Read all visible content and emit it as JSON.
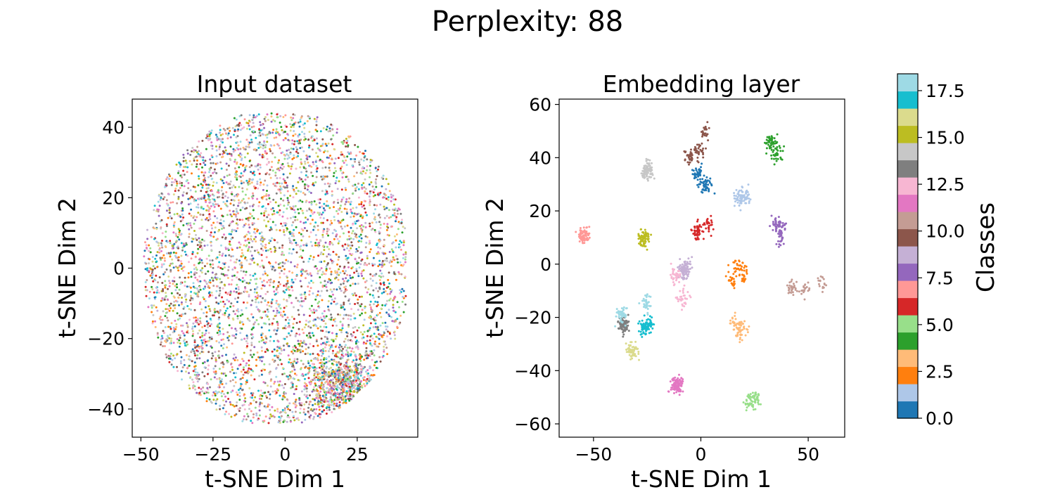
{
  "figure": {
    "suptitle": "Perplexity: 88"
  },
  "colors": {
    "tab20": [
      "#1f77b4",
      "#aec7e8",
      "#ff7f0e",
      "#ffbb78",
      "#2ca02c",
      "#98df8a",
      "#d62728",
      "#ff9896",
      "#9467bd",
      "#c5b0d5",
      "#8c564b",
      "#c49c94",
      "#e377c2",
      "#f7b6d2",
      "#7f7f7f",
      "#c7c7c7",
      "#bcbd22",
      "#dbdb8d",
      "#17becf",
      "#9edae5"
    ]
  },
  "chart_data": [
    {
      "type": "scatter",
      "title": "Input dataset",
      "xlabel": "t-SNE Dim 1",
      "ylabel": "t-SNE Dim 2",
      "xlim": [
        -53,
        46
      ],
      "ylim": [
        -48,
        48
      ],
      "xticks": [
        -50,
        -25,
        0,
        25
      ],
      "yticks": [
        -40,
        -20,
        0,
        20,
        40
      ],
      "xtick_labels": [
        "−50",
        "−25",
        "0",
        "25"
      ],
      "ytick_labels": [
        "−40",
        "−20",
        "0",
        "20",
        "40"
      ],
      "distribution": "dense, well-mixed cloud of all 20 classes spanning x ≈ −48..42, y ≈ −44..44, denser band in lower right (x≈15..30, y≈−30..−40)",
      "approx_points": 5000
    },
    {
      "type": "scatter",
      "title": "Embedding layer",
      "xlabel": "t-SNE Dim 1",
      "ylabel": "t-SNE Dim 2",
      "xlim": [
        -66,
        67
      ],
      "ylim": [
        -65,
        62
      ],
      "xticks": [
        -50,
        0,
        50
      ],
      "yticks": [
        -60,
        -40,
        -20,
        0,
        20,
        40,
        60
      ],
      "xtick_labels": [
        "−50",
        "0",
        "50"
      ],
      "ytick_labels": [
        "−60",
        "−40",
        "−20",
        "0",
        "20",
        "40",
        "60"
      ],
      "clusters": [
        {
          "class": 0,
          "x": 6,
          "y": 29
        },
        {
          "class": 1,
          "x": 19,
          "y": 27
        },
        {
          "class": 2,
          "x": 15,
          "y": -2
        },
        {
          "class": 3,
          "x": 16,
          "y": -23
        },
        {
          "class": 4,
          "x": 37,
          "y": 41
        },
        {
          "class": 5,
          "x": 21,
          "y": -54
        },
        {
          "class": 6,
          "x": 2,
          "y": 15
        },
        {
          "class": 7,
          "x": -53,
          "y": 9
        },
        {
          "class": 8,
          "x": 38,
          "y": 10
        },
        {
          "class": 9,
          "x": -7,
          "y": 3
        },
        {
          "class": 10,
          "x": -2,
          "y": 48
        },
        {
          "class": 11,
          "x": 47,
          "y": -13
        },
        {
          "class": 12,
          "x": -7,
          "y": -45
        },
        {
          "class": 13,
          "x": -10,
          "y": -12
        },
        {
          "class": 14,
          "x": -44,
          "y": -19
        },
        {
          "class": 15,
          "x": -29,
          "y": 33
        },
        {
          "class": 16,
          "x": -26,
          "y": 8
        },
        {
          "class": 17,
          "x": -26,
          "y": -38
        },
        {
          "class": 18,
          "x": -23,
          "y": -22
        },
        {
          "class": 19,
          "x": -30,
          "y": -16
        }
      ]
    },
    {
      "type": "colorbar",
      "label": "Classes",
      "vmin": 0,
      "vmax": 18.4,
      "ticks": [
        0,
        2.5,
        5,
        7.5,
        10,
        12.5,
        15,
        17.5
      ],
      "tick_labels": [
        "0.0",
        "2.5",
        "5.0",
        "7.5",
        "10.0",
        "12.5",
        "15.0",
        "17.5"
      ],
      "segments": 20,
      "colormap": "tab20"
    }
  ]
}
